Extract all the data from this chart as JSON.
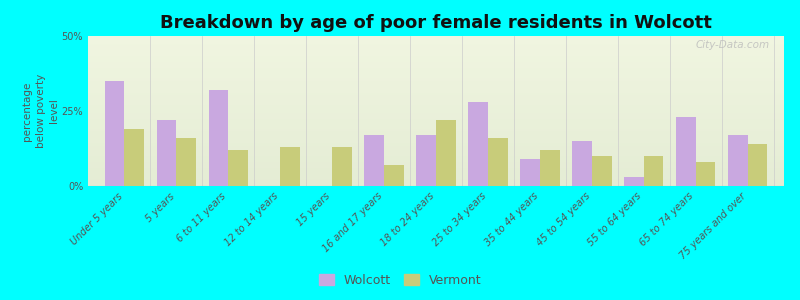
{
  "title": "Breakdown by age of poor female residents in Wolcott",
  "ylabel": "percentage\nbelow poverty\nlevel",
  "categories": [
    "Under 5 years",
    "5 years",
    "6 to 11 years",
    "12 to 14 years",
    "15 years",
    "16 and 17 years",
    "18 to 24 years",
    "25 to 34 years",
    "35 to 44 years",
    "45 to 54 years",
    "55 to 64 years",
    "65 to 74 years",
    "75 years and over"
  ],
  "wolcott": [
    35,
    22,
    32,
    0,
    0,
    17,
    17,
    28,
    9,
    15,
    3,
    23,
    17
  ],
  "vermont": [
    19,
    16,
    12,
    13,
    13,
    7,
    22,
    16,
    12,
    10,
    10,
    8,
    14
  ],
  "wolcott_color": "#c9a8e0",
  "vermont_color": "#c8cc7a",
  "bg_color": "#00ffff",
  "plot_bg_top": "#f0f5e0",
  "plot_bg_bottom": "#e8f0d8",
  "ylim": [
    0,
    50
  ],
  "yticks": [
    0,
    25,
    50
  ],
  "ytick_labels": [
    "0%",
    "25%",
    "50%"
  ],
  "bar_width": 0.38,
  "title_fontsize": 13,
  "axis_label_fontsize": 7.5,
  "tick_fontsize": 7,
  "legend_fontsize": 9,
  "watermark": "City-Data.com"
}
